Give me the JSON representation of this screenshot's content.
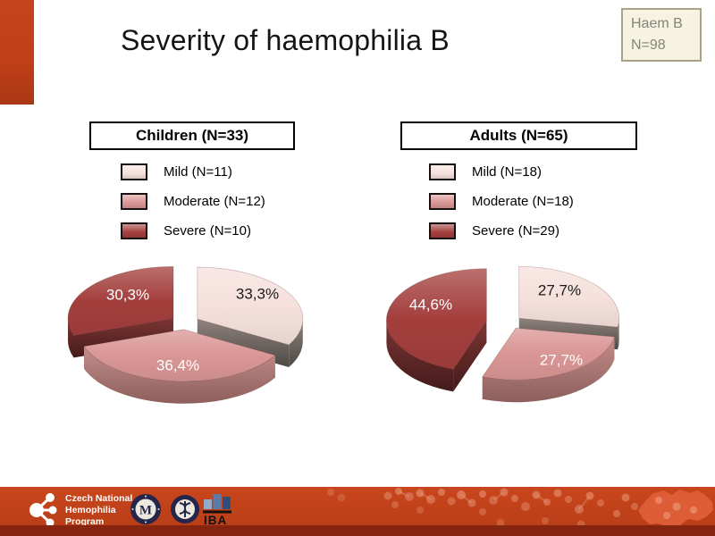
{
  "slide": {
    "title": "Severity of haemophilia B",
    "badge": {
      "line1": "Haem B",
      "line2": "N=98"
    }
  },
  "theme": {
    "accent_red": "#c5431d",
    "accent_red_dark": "#a93814",
    "footer_stripe": "#85250f",
    "badge_bg": "#f6f3e0",
    "badge_border": "#a9a289",
    "badge_text": "#85837a"
  },
  "chart_data": [
    {
      "type": "pie",
      "style": "3d-exploded",
      "header": "Children (N=33)",
      "group": "Children",
      "n": 33,
      "categories": [
        "Mild",
        "Moderate",
        "Severe"
      ],
      "counts": [
        11,
        12,
        10
      ],
      "values_pct": [
        33.3,
        36.4,
        30.3
      ],
      "slice_labels": [
        "33,3%",
        "36,4%",
        "30,3%"
      ],
      "legend_labels": [
        "Mild (N=11)",
        "Moderate (N=12)",
        "Severe (N=10)"
      ],
      "colors": [
        "#f5e0dc",
        "#d99694",
        "#a33f3d"
      ],
      "label_text_colors": [
        "#1a1a1a",
        "#ffffff",
        "#ffffff"
      ],
      "start_angle_deg": 0,
      "direction": "clockwise",
      "legend_position": "above"
    },
    {
      "type": "pie",
      "style": "3d-exploded",
      "header": "Adults (N=65)",
      "group": "Adults",
      "n": 65,
      "categories": [
        "Mild",
        "Moderate",
        "Severe"
      ],
      "counts": [
        18,
        18,
        29
      ],
      "values_pct": [
        27.7,
        27.7,
        44.6
      ],
      "slice_labels": [
        "27,7%",
        "27,7%",
        "44,6%"
      ],
      "legend_labels": [
        "Mild (N=18)",
        "Moderate (N=18)",
        "Severe (N=29)"
      ],
      "colors": [
        "#f5e0dc",
        "#d99694",
        "#a33f3d"
      ],
      "label_text_colors": [
        "#1a1a1a",
        "#ffffff",
        "#ffffff"
      ],
      "start_angle_deg": 0,
      "direction": "clockwise",
      "legend_position": "above"
    }
  ],
  "footer": {
    "program_name_lines": [
      "Czech National",
      "Hemophilia",
      "Program"
    ],
    "iba_label": "IBA"
  }
}
